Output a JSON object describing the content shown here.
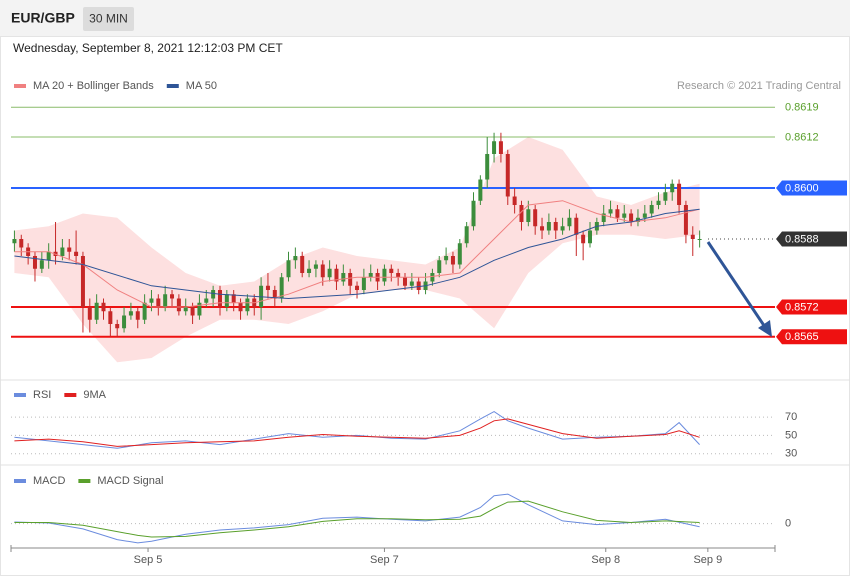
{
  "header": {
    "symbol": "EUR/GBP",
    "timeframe": "30 MIN",
    "timestamp": "Wednesday, September 8, 2021 12:12:03 PM CET"
  },
  "chart_data": [
    {
      "type": "candlestick",
      "source": "Research © 2021 Trading Central",
      "up_color": "#3c8d3c",
      "down_color": "#c62828",
      "xlim": [
        -0.5,
        111
      ],
      "ylim": [
        0.8556,
        0.8628
      ],
      "open": [
        0.8587,
        0.8588,
        0.8586,
        0.8584,
        0.8581,
        0.8583,
        0.8585,
        0.8584,
        0.8586,
        0.8585,
        0.8584,
        0.8572,
        0.8569,
        0.8573,
        0.8571,
        0.8568,
        0.8567,
        0.857,
        0.8571,
        0.8569,
        0.8573,
        0.8574,
        0.8572,
        0.8575,
        0.8574,
        0.8571,
        0.8572,
        0.857,
        0.8573,
        0.8574,
        0.8576,
        0.8572,
        0.8575,
        0.8573,
        0.8571,
        0.8574,
        0.8572,
        0.8577,
        0.8576,
        0.8574,
        0.8579,
        0.8583,
        0.8584,
        0.858,
        0.8581,
        0.8582,
        0.8579,
        0.8581,
        0.8578,
        0.858,
        0.8577,
        0.8576,
        0.8579,
        0.858,
        0.8578,
        0.8581,
        0.858,
        0.8579,
        0.8577,
        0.8578,
        0.8576,
        0.8578,
        0.858,
        0.8583,
        0.8584,
        0.8582,
        0.8587,
        0.8591,
        0.8597,
        0.8602,
        0.8608,
        0.8611,
        0.8608,
        0.8598,
        0.8596,
        0.8592,
        0.8595,
        0.8591,
        0.859,
        0.8592,
        0.859,
        0.8591,
        0.8593,
        0.8589,
        0.8587,
        0.859,
        0.8592,
        0.8594,
        0.8595,
        0.8593,
        0.8594,
        0.8592,
        0.8593,
        0.8594,
        0.8596,
        0.8597,
        0.8599,
        0.8601,
        0.8596,
        0.8589,
        0.8588
      ],
      "high": [
        0.859,
        0.8589,
        0.8587,
        0.8585,
        0.8585,
        0.8587,
        0.8592,
        0.8588,
        0.8588,
        0.859,
        0.8585,
        0.8574,
        0.8575,
        0.8574,
        0.8572,
        0.8569,
        0.8572,
        0.8573,
        0.8572,
        0.8575,
        0.8576,
        0.8575,
        0.8577,
        0.8576,
        0.8575,
        0.8574,
        0.8573,
        0.8575,
        0.8576,
        0.8577,
        0.8577,
        0.8576,
        0.8576,
        0.8574,
        0.8575,
        0.8575,
        0.8579,
        0.858,
        0.8577,
        0.858,
        0.8585,
        0.8586,
        0.8585,
        0.8583,
        0.8583,
        0.8583,
        0.8583,
        0.8582,
        0.8582,
        0.8581,
        0.8578,
        0.8581,
        0.8582,
        0.8581,
        0.8582,
        0.8582,
        0.8581,
        0.858,
        0.858,
        0.8579,
        0.858,
        0.8581,
        0.8584,
        0.8586,
        0.8585,
        0.8588,
        0.8592,
        0.8599,
        0.8603,
        0.8612,
        0.8613,
        0.8613,
        0.8609,
        0.86,
        0.8597,
        0.8597,
        0.8596,
        0.8593,
        0.8594,
        0.8593,
        0.8593,
        0.8595,
        0.8594,
        0.859,
        0.8592,
        0.8593,
        0.8596,
        0.8597,
        0.8596,
        0.8596,
        0.8595,
        0.8595,
        0.8596,
        0.8597,
        0.8599,
        0.8601,
        0.8602,
        0.8602,
        0.8597,
        0.8591,
        0.859
      ],
      "low": [
        0.8585,
        0.8584,
        0.8582,
        0.8578,
        0.858,
        0.8581,
        0.8582,
        0.8583,
        0.8583,
        0.8582,
        0.8566,
        0.8566,
        0.8568,
        0.8569,
        0.8565,
        0.8565,
        0.8566,
        0.8569,
        0.8567,
        0.8568,
        0.8571,
        0.857,
        0.8571,
        0.8572,
        0.857,
        0.857,
        0.8568,
        0.8569,
        0.8572,
        0.8572,
        0.857,
        0.8571,
        0.8571,
        0.8569,
        0.857,
        0.857,
        0.8569,
        0.8574,
        0.8572,
        0.8573,
        0.8578,
        0.8581,
        0.8579,
        0.8579,
        0.8579,
        0.8577,
        0.8578,
        0.8576,
        0.8577,
        0.8575,
        0.8574,
        0.8575,
        0.8578,
        0.8576,
        0.8577,
        0.8578,
        0.8577,
        0.8576,
        0.8576,
        0.8575,
        0.8575,
        0.8577,
        0.8579,
        0.8582,
        0.858,
        0.8581,
        0.8586,
        0.859,
        0.8596,
        0.86,
        0.8606,
        0.8606,
        0.8596,
        0.8594,
        0.859,
        0.8591,
        0.8589,
        0.8588,
        0.8589,
        0.8588,
        0.8589,
        0.859,
        0.8584,
        0.8583,
        0.8586,
        0.8589,
        0.8591,
        0.8593,
        0.8592,
        0.8592,
        0.8591,
        0.8591,
        0.8592,
        0.8593,
        0.8595,
        0.8596,
        0.8597,
        0.8594,
        0.8587,
        0.8584,
        0.8586
      ],
      "close": [
        0.8588,
        0.8586,
        0.8584,
        0.8581,
        0.8583,
        0.8585,
        0.8584,
        0.8586,
        0.8585,
        0.8584,
        0.8572,
        0.8569,
        0.8573,
        0.8571,
        0.8568,
        0.8567,
        0.857,
        0.8571,
        0.8569,
        0.8573,
        0.8574,
        0.8572,
        0.8575,
        0.8574,
        0.8571,
        0.8572,
        0.857,
        0.8573,
        0.8574,
        0.8576,
        0.8572,
        0.8575,
        0.8573,
        0.8571,
        0.8574,
        0.8572,
        0.8577,
        0.8576,
        0.8574,
        0.8579,
        0.8583,
        0.8584,
        0.858,
        0.8581,
        0.8582,
        0.8579,
        0.8581,
        0.8578,
        0.858,
        0.8577,
        0.8576,
        0.8579,
        0.858,
        0.8578,
        0.8581,
        0.858,
        0.8579,
        0.8577,
        0.8578,
        0.8576,
        0.8578,
        0.858,
        0.8583,
        0.8584,
        0.8582,
        0.8587,
        0.8591,
        0.8597,
        0.8602,
        0.8608,
        0.8611,
        0.8608,
        0.8598,
        0.8596,
        0.8592,
        0.8595,
        0.8591,
        0.859,
        0.8592,
        0.859,
        0.8591,
        0.8593,
        0.8589,
        0.8587,
        0.859,
        0.8592,
        0.8594,
        0.8595,
        0.8593,
        0.8594,
        0.8592,
        0.8593,
        0.8594,
        0.8596,
        0.8597,
        0.8599,
        0.8601,
        0.8596,
        0.8589,
        0.8588,
        0.8588
      ],
      "series": [
        {
          "name": "MA 20 + Bollinger Bands",
          "color": "#f08080",
          "band_color": "#fde0e0",
          "x": [
            0,
            5,
            10,
            15,
            20,
            25,
            30,
            35,
            40,
            45,
            50,
            55,
            60,
            65,
            70,
            75,
            80,
            85,
            90,
            95,
            100
          ],
          "values": [
            0.8585,
            0.8585,
            0.8582,
            0.8576,
            0.8572,
            0.8572,
            0.8573,
            0.8573,
            0.8575,
            0.8578,
            0.8579,
            0.8579,
            0.8579,
            0.858,
            0.8588,
            0.8596,
            0.8597,
            0.8594,
            0.8592,
            0.8593,
            0.8595
          ],
          "upper": [
            0.859,
            0.8591,
            0.8594,
            0.8593,
            0.8586,
            0.858,
            0.8577,
            0.8578,
            0.8583,
            0.8586,
            0.8584,
            0.8583,
            0.8582,
            0.8586,
            0.8607,
            0.8612,
            0.8609,
            0.8598,
            0.8596,
            0.8599,
            0.8601
          ],
          "lower": [
            0.858,
            0.8579,
            0.8568,
            0.8559,
            0.856,
            0.8565,
            0.8569,
            0.8569,
            0.8568,
            0.8571,
            0.8575,
            0.8576,
            0.8576,
            0.8574,
            0.8567,
            0.858,
            0.8587,
            0.8589,
            0.8589,
            0.8588,
            0.8589
          ]
        },
        {
          "name": "MA 50",
          "color": "#2f5597",
          "x": [
            0,
            10,
            20,
            30,
            40,
            50,
            60,
            65,
            70,
            75,
            80,
            85,
            90,
            95,
            100
          ],
          "values": [
            0.8584,
            0.8582,
            0.8577,
            0.8575,
            0.8574,
            0.8575,
            0.8577,
            0.8579,
            0.8583,
            0.8586,
            0.8588,
            0.8591,
            0.8592,
            0.8594,
            0.8595
          ]
        }
      ],
      "levels": [
        {
          "value": 0.8619,
          "color": "#5aa02c",
          "tag": false,
          "line_style": "solid"
        },
        {
          "value": 0.8612,
          "color": "#5aa02c",
          "tag": false,
          "line_style": "solid"
        },
        {
          "value": 0.86,
          "label": "0.8600",
          "color": "#2962ff",
          "tag": true,
          "line_style": "solid"
        },
        {
          "value": 0.8588,
          "color": "#333333",
          "tag": true,
          "line_style": "dotted"
        },
        {
          "value": 0.8572,
          "color": "#ee1111",
          "tag": true,
          "line_style": "solid"
        },
        {
          "value": 0.8565,
          "color": "#ee1111",
          "tag": true,
          "line_style": "solid"
        }
      ]
    },
    {
      "type": "line",
      "xlim": [
        -0.5,
        111
      ],
      "ylim": [
        21,
        105
      ],
      "yticks": [
        70,
        50,
        30
      ],
      "grid": true,
      "series": [
        {
          "name": "RSI",
          "color": "#6b8cde",
          "x": [
            0,
            5,
            10,
            15,
            20,
            25,
            30,
            35,
            40,
            45,
            50,
            55,
            60,
            65,
            68,
            70,
            72,
            75,
            80,
            85,
            90,
            95,
            97,
            100
          ],
          "values": [
            48,
            44,
            40,
            36,
            42,
            44,
            40,
            46,
            52,
            48,
            50,
            47,
            46,
            55,
            68,
            76,
            66,
            58,
            46,
            48,
            49,
            52,
            64,
            40
          ]
        },
        {
          "name": "9MA",
          "color": "#e02020",
          "x": [
            0,
            5,
            10,
            15,
            20,
            25,
            30,
            35,
            40,
            45,
            50,
            55,
            60,
            65,
            68,
            70,
            72,
            75,
            80,
            85,
            90,
            95,
            97,
            100
          ],
          "values": [
            44,
            46,
            43,
            38,
            40,
            42,
            43,
            44,
            48,
            51,
            49,
            48,
            47,
            50,
            58,
            66,
            68,
            62,
            52,
            47,
            49,
            51,
            55,
            48
          ]
        }
      ]
    },
    {
      "type": "line",
      "xlim": [
        -0.5,
        111
      ],
      "ylim": [
        -0.0004,
        0.001
      ],
      "yticks": [
        0
      ],
      "grid": true,
      "xticks": [
        {
          "value": 19.5,
          "label": "Sep 5"
        },
        {
          "value": 54,
          "label": "Sep 7"
        },
        {
          "value": 86.3,
          "label": "Sep 8"
        },
        {
          "value": 101.2,
          "label": "Sep 9"
        }
      ],
      "series": [
        {
          "name": "MACD",
          "color": "#6b8cde",
          "x": [
            0,
            5,
            10,
            15,
            18,
            20,
            25,
            30,
            35,
            40,
            45,
            50,
            55,
            60,
            65,
            68,
            70,
            72,
            75,
            80,
            85,
            90,
            95,
            100
          ],
          "values": [
            3e-05,
            1e-05,
            -0.0001,
            -0.0003,
            -0.00036,
            -0.00033,
            -0.0002,
            -0.00012,
            -8e-05,
            -2e-05,
            0.0001,
            0.00012,
            8e-05,
            5e-05,
            0.00012,
            0.0003,
            0.00052,
            0.00055,
            0.00035,
            5e-05,
            -2e-05,
            2e-05,
            8e-05,
            -6e-05
          ]
        },
        {
          "name": "MACD Signal",
          "color": "#5aa02c",
          "x": [
            0,
            5,
            10,
            15,
            18,
            20,
            25,
            30,
            35,
            40,
            45,
            50,
            55,
            60,
            65,
            68,
            70,
            72,
            75,
            80,
            85,
            90,
            95,
            100
          ],
          "values": [
            2e-05,
            2e-05,
            -3e-05,
            -0.00015,
            -0.00022,
            -0.00025,
            -0.00024,
            -0.00017,
            -0.00012,
            -6e-05,
            4e-05,
            9e-05,
            9e-05,
            7e-05,
            8e-05,
            0.00014,
            0.00028,
            0.0004,
            0.00042,
            0.00022,
            6e-05,
            2e-05,
            5e-05,
            2e-05
          ]
        }
      ]
    }
  ]
}
